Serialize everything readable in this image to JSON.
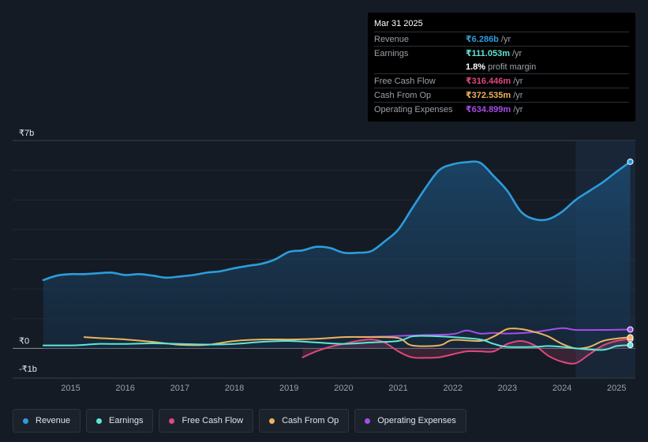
{
  "tooltip": {
    "date": "Mar 31 2025",
    "rows": [
      {
        "label": "Revenue",
        "value": "₹6.286b",
        "unit": "/yr",
        "color": "#2d9cdb"
      },
      {
        "label": "Earnings",
        "value": "₹111.053m",
        "unit": "/yr",
        "color": "#5ee6d6"
      },
      {
        "label": "",
        "value": "1.8%",
        "unit": "profit margin",
        "color": "#ffffff"
      },
      {
        "label": "Free Cash Flow",
        "value": "₹316.446m",
        "unit": "/yr",
        "color": "#e0487e"
      },
      {
        "label": "Cash From Op",
        "value": "₹372.535m",
        "unit": "/yr",
        "color": "#f0b25c"
      },
      {
        "label": "Operating Expenses",
        "value": "₹634.899m",
        "unit": "/yr",
        "color": "#a64de6"
      }
    ]
  },
  "legend": [
    {
      "label": "Revenue",
      "color": "#2d9cdb"
    },
    {
      "label": "Earnings",
      "color": "#5ee6d6"
    },
    {
      "label": "Free Cash Flow",
      "color": "#e0487e"
    },
    {
      "label": "Cash From Op",
      "color": "#f0b25c"
    },
    {
      "label": "Operating Expenses",
      "color": "#a64de6"
    }
  ],
  "chart_data": {
    "type": "area",
    "title": "",
    "xlabel": "",
    "ylabel": "",
    "unit": "₹b",
    "ylim": [
      -1,
      7
    ],
    "xlim": [
      2014.4,
      2025.3
    ],
    "y_tick_labels": [
      {
        "value": 7,
        "label": "₹7b"
      },
      {
        "value": 0,
        "label": "₹0"
      },
      {
        "value": -1,
        "label": "-₹1b"
      }
    ],
    "x_ticks": [
      "2015",
      "2016",
      "2017",
      "2018",
      "2019",
      "2020",
      "2021",
      "2022",
      "2023",
      "2024",
      "2025"
    ],
    "highlight_from": 2024.25,
    "series": [
      {
        "name": "Revenue",
        "color": "#2d9cdb",
        "fill": true,
        "points": [
          [
            2014.5,
            2.3
          ],
          [
            2014.75,
            2.45
          ],
          [
            2015.0,
            2.5
          ],
          [
            2015.25,
            2.5
          ],
          [
            2015.5,
            2.53
          ],
          [
            2015.75,
            2.55
          ],
          [
            2016.0,
            2.47
          ],
          [
            2016.25,
            2.5
          ],
          [
            2016.5,
            2.45
          ],
          [
            2016.75,
            2.38
          ],
          [
            2017.0,
            2.42
          ],
          [
            2017.25,
            2.47
          ],
          [
            2017.5,
            2.55
          ],
          [
            2017.75,
            2.6
          ],
          [
            2018.0,
            2.7
          ],
          [
            2018.25,
            2.78
          ],
          [
            2018.5,
            2.85
          ],
          [
            2018.75,
            3.0
          ],
          [
            2019.0,
            3.25
          ],
          [
            2019.25,
            3.3
          ],
          [
            2019.5,
            3.42
          ],
          [
            2019.75,
            3.38
          ],
          [
            2020.0,
            3.22
          ],
          [
            2020.25,
            3.22
          ],
          [
            2020.5,
            3.27
          ],
          [
            2020.75,
            3.6
          ],
          [
            2021.0,
            4.0
          ],
          [
            2021.25,
            4.7
          ],
          [
            2021.5,
            5.4
          ],
          [
            2021.75,
            6.0
          ],
          [
            2022.0,
            6.2
          ],
          [
            2022.25,
            6.27
          ],
          [
            2022.5,
            6.25
          ],
          [
            2022.75,
            5.8
          ],
          [
            2023.0,
            5.3
          ],
          [
            2023.25,
            4.6
          ],
          [
            2023.5,
            4.35
          ],
          [
            2023.75,
            4.35
          ],
          [
            2024.0,
            4.6
          ],
          [
            2024.25,
            5.0
          ],
          [
            2024.5,
            5.3
          ],
          [
            2024.75,
            5.6
          ],
          [
            2025.0,
            5.95
          ],
          [
            2025.25,
            6.286
          ]
        ]
      },
      {
        "name": "Earnings",
        "color": "#5ee6d6",
        "fill": false,
        "points": [
          [
            2014.5,
            0.1
          ],
          [
            2015.0,
            0.1
          ],
          [
            2015.25,
            0.12
          ],
          [
            2015.5,
            0.15
          ],
          [
            2016.0,
            0.15
          ],
          [
            2016.5,
            0.17
          ],
          [
            2017.0,
            0.15
          ],
          [
            2017.5,
            0.13
          ],
          [
            2018.0,
            0.15
          ],
          [
            2018.5,
            0.22
          ],
          [
            2019.0,
            0.25
          ],
          [
            2019.5,
            0.2
          ],
          [
            2020.0,
            0.15
          ],
          [
            2020.5,
            0.2
          ],
          [
            2021.0,
            0.25
          ],
          [
            2021.25,
            0.4
          ],
          [
            2021.5,
            0.42
          ],
          [
            2022.0,
            0.38
          ],
          [
            2022.5,
            0.3
          ],
          [
            2022.75,
            0.15
          ],
          [
            2023.0,
            0.05
          ],
          [
            2023.5,
            0.05
          ],
          [
            2023.75,
            0.08
          ],
          [
            2024.0,
            0.05
          ],
          [
            2024.25,
            0.0
          ],
          [
            2024.75,
            -0.05
          ],
          [
            2025.0,
            0.08
          ],
          [
            2025.25,
            0.111
          ]
        ]
      },
      {
        "name": "Free Cash Flow",
        "color": "#e0487e",
        "fill": true,
        "points": [
          [
            2019.25,
            -0.3
          ],
          [
            2019.5,
            -0.1
          ],
          [
            2019.75,
            0.05
          ],
          [
            2020.0,
            0.15
          ],
          [
            2020.25,
            0.25
          ],
          [
            2020.5,
            0.3
          ],
          [
            2020.75,
            0.2
          ],
          [
            2021.0,
            -0.1
          ],
          [
            2021.25,
            -0.3
          ],
          [
            2021.5,
            -0.32
          ],
          [
            2021.75,
            -0.3
          ],
          [
            2022.0,
            -0.2
          ],
          [
            2022.25,
            -0.1
          ],
          [
            2022.5,
            -0.1
          ],
          [
            2022.75,
            -0.1
          ],
          [
            2023.0,
            0.15
          ],
          [
            2023.25,
            0.25
          ],
          [
            2023.5,
            0.1
          ],
          [
            2023.75,
            -0.25
          ],
          [
            2024.0,
            -0.45
          ],
          [
            2024.25,
            -0.5
          ],
          [
            2024.5,
            -0.2
          ],
          [
            2024.75,
            0.1
          ],
          [
            2025.0,
            0.25
          ],
          [
            2025.25,
            0.316
          ]
        ]
      },
      {
        "name": "Cash From Op",
        "color": "#f0b25c",
        "fill": false,
        "points": [
          [
            2015.25,
            0.38
          ],
          [
            2015.5,
            0.35
          ],
          [
            2016.0,
            0.3
          ],
          [
            2016.5,
            0.22
          ],
          [
            2017.0,
            0.12
          ],
          [
            2017.5,
            0.12
          ],
          [
            2018.0,
            0.25
          ],
          [
            2018.5,
            0.3
          ],
          [
            2019.0,
            0.3
          ],
          [
            2019.5,
            0.32
          ],
          [
            2020.0,
            0.38
          ],
          [
            2020.5,
            0.38
          ],
          [
            2021.0,
            0.35
          ],
          [
            2021.25,
            0.1
          ],
          [
            2021.75,
            0.1
          ],
          [
            2022.0,
            0.28
          ],
          [
            2022.5,
            0.25
          ],
          [
            2022.75,
            0.4
          ],
          [
            2023.0,
            0.65
          ],
          [
            2023.25,
            0.65
          ],
          [
            2023.5,
            0.55
          ],
          [
            2023.75,
            0.4
          ],
          [
            2024.0,
            0.15
          ],
          [
            2024.25,
            0.0
          ],
          [
            2024.5,
            0.05
          ],
          [
            2024.75,
            0.25
          ],
          [
            2025.0,
            0.33
          ],
          [
            2025.25,
            0.373
          ]
        ]
      },
      {
        "name": "Operating Expenses",
        "color": "#a64de6",
        "fill": false,
        "points": [
          [
            2020.25,
            0.38
          ],
          [
            2020.75,
            0.4
          ],
          [
            2021.0,
            0.42
          ],
          [
            2021.5,
            0.45
          ],
          [
            2022.0,
            0.48
          ],
          [
            2022.25,
            0.6
          ],
          [
            2022.5,
            0.5
          ],
          [
            2022.75,
            0.52
          ],
          [
            2023.0,
            0.5
          ],
          [
            2023.5,
            0.55
          ],
          [
            2024.0,
            0.68
          ],
          [
            2024.25,
            0.62
          ],
          [
            2024.75,
            0.62
          ],
          [
            2025.0,
            0.63
          ],
          [
            2025.25,
            0.635
          ]
        ]
      }
    ]
  }
}
